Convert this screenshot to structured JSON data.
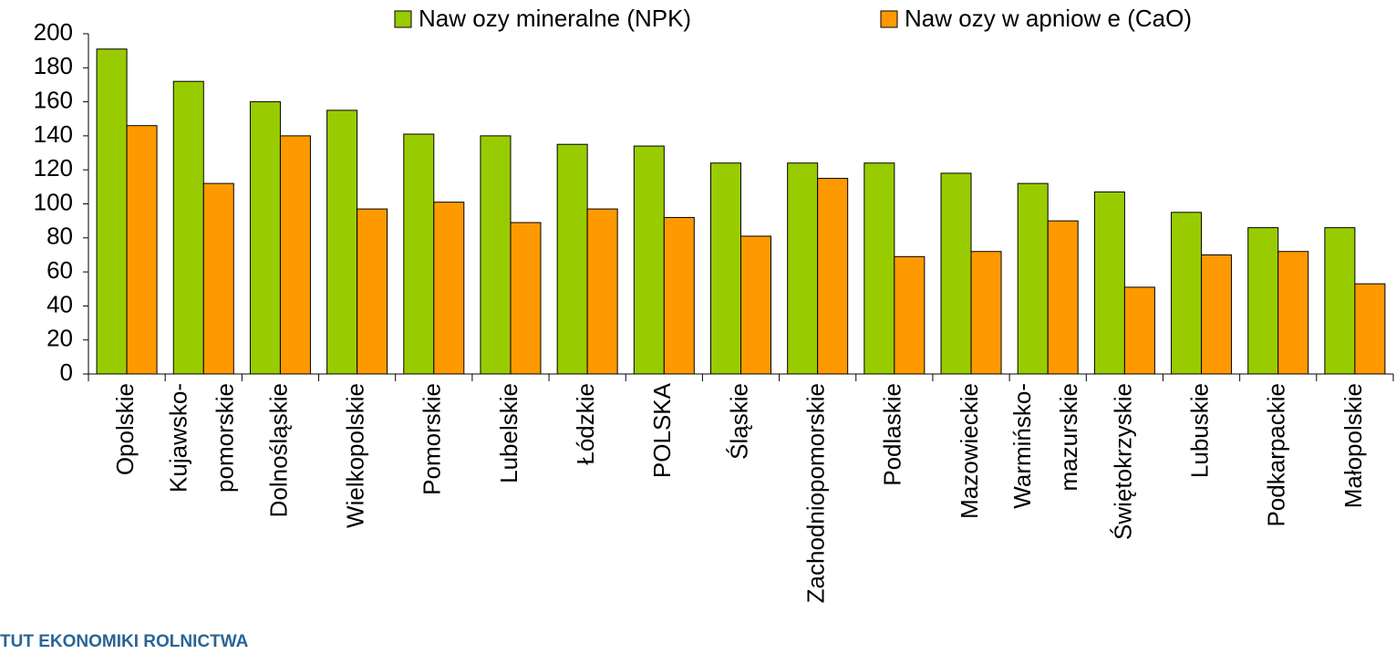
{
  "chart_data": {
    "type": "bar",
    "categories": [
      "Opolskie",
      "Kujawsko-\npomorskie",
      "Dolnośląskie",
      "Wielkopolskie",
      "Pomorskie",
      "Lubelskie",
      "Łódzkie",
      "POLSKA",
      "Śląskie",
      "Zachodniopomorskie",
      "Podlaskie",
      "Mazowieckie",
      "Warmińsko-\nmazurskie",
      "Świętokrzyskie",
      "Lubuskie",
      "Podkarpackie",
      "Małopolskie"
    ],
    "series": [
      {
        "name": "Naw ozy mineralne (NPK)",
        "color": "#99cc00",
        "values": [
          191,
          172,
          160,
          155,
          141,
          140,
          135,
          134,
          124,
          124,
          124,
          118,
          112,
          107,
          95,
          86,
          86
        ]
      },
      {
        "name": "Naw ozy w apniow e (CaO)",
        "color": "#ff9900",
        "values": [
          146,
          112,
          140,
          97,
          101,
          89,
          97,
          92,
          81,
          115,
          69,
          72,
          90,
          51,
          70,
          72,
          53
        ]
      }
    ],
    "ylim": [
      0,
      200
    ],
    "yticks": [
      0,
      20,
      40,
      60,
      80,
      100,
      120,
      140,
      160,
      180,
      200
    ],
    "legend": "top"
  },
  "logo": "TUT EKONOMIKI ROLNICTWA"
}
